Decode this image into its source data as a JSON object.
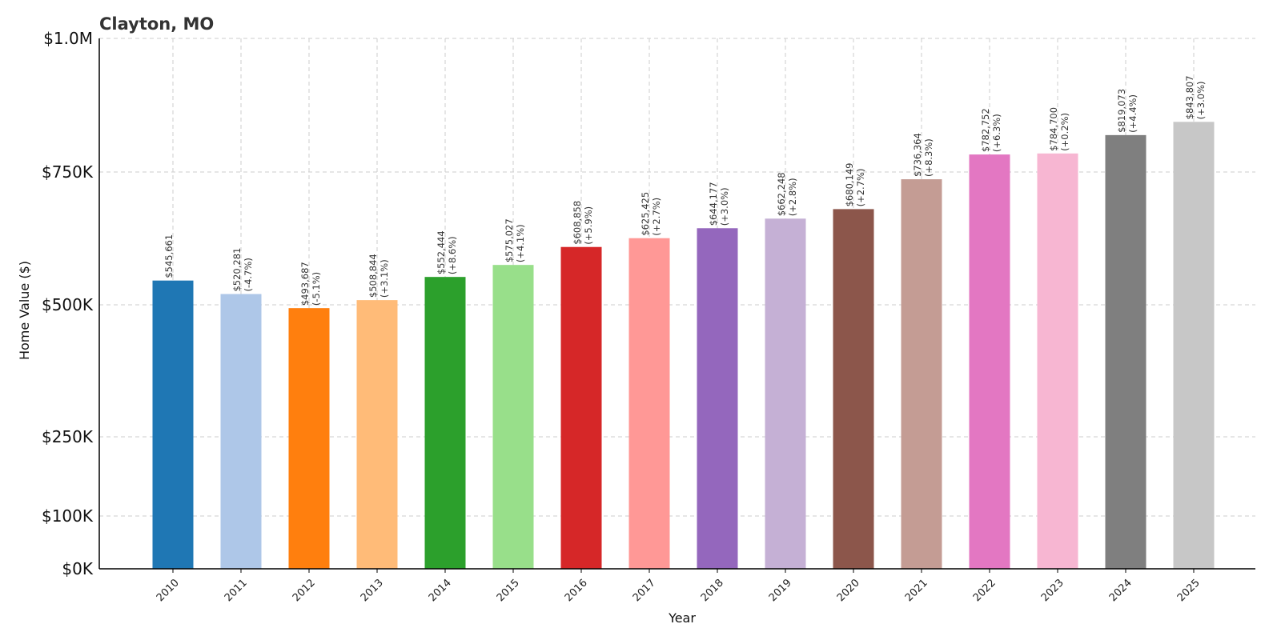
{
  "chart_data": {
    "type": "bar",
    "title": "Clayton, MO",
    "xlabel": "Year",
    "ylabel": "Home Value ($)",
    "ylim": [
      0,
      1000000
    ],
    "grid": true,
    "y_scale": "custom",
    "y_ticks": [
      {
        "value": 0,
        "label": "$0K"
      },
      {
        "value": 100000,
        "label": "$100K"
      },
      {
        "value": 250000,
        "label": "$250K"
      },
      {
        "value": 500000,
        "label": "$500K"
      },
      {
        "value": 750000,
        "label": "$750K"
      },
      {
        "value": 1000000,
        "label": "$1.0M"
      }
    ],
    "categories": [
      "2010",
      "2011",
      "2012",
      "2013",
      "2014",
      "2015",
      "2016",
      "2017",
      "2018",
      "2019",
      "2020",
      "2021",
      "2022",
      "2023",
      "2024",
      "2025"
    ],
    "values": [
      545661,
      520281,
      493687,
      508844,
      552444,
      575027,
      608858,
      625425,
      644177,
      662248,
      680149,
      736364,
      782752,
      784700,
      819073,
      843807
    ],
    "value_labels": [
      "$545,661",
      "$520,281",
      "$493,687",
      "$508,844",
      "$552,444",
      "$575,027",
      "$608,858",
      "$625,425",
      "$644,177",
      "$662,248",
      "$680,149",
      "$736,364",
      "$782,752",
      "$784,700",
      "$819,073",
      "$843,807"
    ],
    "change_labels": [
      "",
      "(-4.7%)",
      "(-5.1%)",
      "(+3.1%)",
      "(+8.6%)",
      "(+4.1%)",
      "(+5.9%)",
      "(+2.7%)",
      "(+3.0%)",
      "(+2.8%)",
      "(+2.7%)",
      "(+8.3%)",
      "(+6.3%)",
      "(+0.2%)",
      "(+4.4%)",
      "(+3.0%)"
    ],
    "colors": [
      "#1f77b4",
      "#aec7e8",
      "#ff7f0e",
      "#ffbb78",
      "#2ca02c",
      "#98df8a",
      "#d62728",
      "#ff9896",
      "#9467bd",
      "#c5b0d5",
      "#8c564b",
      "#c49c94",
      "#e377c2",
      "#f7b6d2",
      "#7f7f7f",
      "#c7c7c7"
    ]
  }
}
